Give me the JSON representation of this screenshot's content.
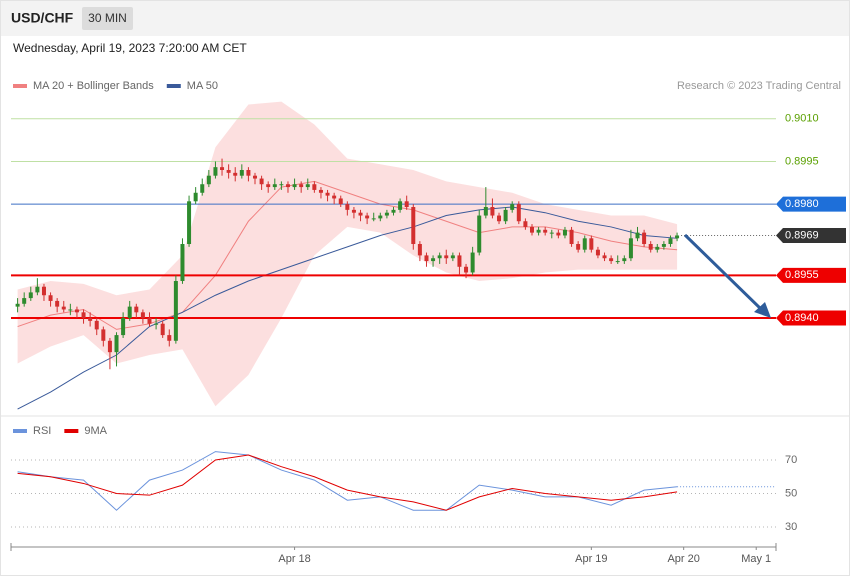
{
  "header": {
    "symbol": "USD/CHF",
    "interval": "30 MIN",
    "timestamp": "Wednesday, April 19, 2023 7:20:00 AM CET"
  },
  "chart_data": [
    {
      "type": "candlestick",
      "credit": "Research © 2023 Trading Central",
      "xlim": [
        -1,
        115
      ],
      "ylim": [
        0.8908,
        0.902
      ],
      "up_color": "#2e8b2e",
      "down_color": "#d32f2f",
      "open": [
        0.8944,
        0.8945,
        0.8947,
        0.8949,
        0.8951,
        0.8948,
        0.8946,
        0.8944,
        0.8943,
        0.8943,
        0.8942,
        0.894,
        0.8939,
        0.8936,
        0.8932,
        0.8928,
        0.8934,
        0.894,
        0.8944,
        0.8942,
        0.894,
        0.8938,
        0.8938,
        0.8934,
        0.8932,
        0.8953,
        0.8966,
        0.8981,
        0.8984,
        0.8987,
        0.899,
        0.8993,
        0.8992,
        0.8991,
        0.899,
        0.8992,
        0.899,
        0.8989,
        0.8987,
        0.8986,
        0.8987,
        0.8987,
        0.8986,
        0.8987,
        0.8986,
        0.8987,
        0.8985,
        0.8984,
        0.8983,
        0.8982,
        0.898,
        0.8978,
        0.8977,
        0.8976,
        0.8975,
        0.8975,
        0.8976,
        0.8977,
        0.8978,
        0.8981,
        0.8979,
        0.8966,
        0.8962,
        0.896,
        0.8961,
        0.8962,
        0.8961,
        0.8962,
        0.8958,
        0.8956,
        0.8963,
        0.8976,
        0.8979,
        0.8976,
        0.8974,
        0.8978,
        0.898,
        0.8974,
        0.8972,
        0.897,
        0.8971,
        0.897,
        0.897,
        0.8969,
        0.8971,
        0.8966,
        0.8964,
        0.8968,
        0.8964,
        0.8962,
        0.8961,
        0.896,
        0.896,
        0.8961,
        0.8968,
        0.897,
        0.8966,
        0.8964,
        0.8965,
        0.8966,
        0.8968
      ],
      "high": [
        0.8947,
        0.8949,
        0.8951,
        0.8954,
        0.8952,
        0.8949,
        0.8947,
        0.8946,
        0.8945,
        0.8944,
        0.8943,
        0.8942,
        0.894,
        0.8937,
        0.8933,
        0.8935,
        0.8942,
        0.8946,
        0.8945,
        0.8943,
        0.8942,
        0.894,
        0.8939,
        0.8936,
        0.8955,
        0.8968,
        0.8983,
        0.8986,
        0.8989,
        0.8992,
        0.8995,
        0.8996,
        0.8994,
        0.8993,
        0.8994,
        0.8993,
        0.8991,
        0.899,
        0.8988,
        0.8989,
        0.8988,
        0.8988,
        0.8989,
        0.8988,
        0.8989,
        0.8988,
        0.8986,
        0.8985,
        0.8984,
        0.8983,
        0.8981,
        0.8979,
        0.8978,
        0.8977,
        0.8977,
        0.8977,
        0.8978,
        0.8979,
        0.8982,
        0.8983,
        0.898,
        0.8967,
        0.8963,
        0.8962,
        0.8963,
        0.8964,
        0.8963,
        0.8963,
        0.8959,
        0.8965,
        0.8978,
        0.8986,
        0.8982,
        0.8977,
        0.8979,
        0.8981,
        0.8981,
        0.8975,
        0.8973,
        0.8972,
        0.8972,
        0.8971,
        0.8971,
        0.8972,
        0.8972,
        0.8967,
        0.8969,
        0.8969,
        0.8965,
        0.8963,
        0.8962,
        0.8962,
        0.8962,
        0.8971,
        0.8972,
        0.8971,
        0.8967,
        0.8966,
        0.8967,
        0.8969,
        0.897
      ],
      "low": [
        0.8942,
        0.8944,
        0.8946,
        0.8948,
        0.8946,
        0.8944,
        0.8942,
        0.8942,
        0.8941,
        0.894,
        0.8938,
        0.8937,
        0.8934,
        0.893,
        0.8922,
        0.8923,
        0.8933,
        0.8939,
        0.894,
        0.8938,
        0.8937,
        0.8936,
        0.8933,
        0.893,
        0.8931,
        0.8952,
        0.8965,
        0.898,
        0.8983,
        0.8986,
        0.8989,
        0.899,
        0.8989,
        0.8988,
        0.8989,
        0.8988,
        0.8987,
        0.8985,
        0.8984,
        0.8985,
        0.8985,
        0.8984,
        0.8985,
        0.8984,
        0.8985,
        0.8984,
        0.8982,
        0.8981,
        0.898,
        0.8979,
        0.8976,
        0.8975,
        0.8974,
        0.8973,
        0.8974,
        0.8974,
        0.8975,
        0.8976,
        0.8977,
        0.8978,
        0.8964,
        0.896,
        0.8958,
        0.8958,
        0.8959,
        0.8959,
        0.896,
        0.8955,
        0.8954,
        0.8955,
        0.8962,
        0.8975,
        0.8975,
        0.8973,
        0.8973,
        0.8977,
        0.8973,
        0.8971,
        0.8969,
        0.8969,
        0.8969,
        0.8968,
        0.8968,
        0.8968,
        0.8965,
        0.8963,
        0.8963,
        0.8963,
        0.8961,
        0.896,
        0.8959,
        0.8959,
        0.8959,
        0.896,
        0.8967,
        0.8965,
        0.8963,
        0.8963,
        0.8964,
        0.8965,
        0.8967
      ],
      "close": [
        0.8945,
        0.8947,
        0.8949,
        0.8951,
        0.8948,
        0.8946,
        0.8944,
        0.8943,
        0.8943,
        0.8942,
        0.894,
        0.8939,
        0.8936,
        0.8932,
        0.8928,
        0.8934,
        0.894,
        0.8944,
        0.8942,
        0.894,
        0.8938,
        0.8938,
        0.8934,
        0.8932,
        0.8953,
        0.8966,
        0.8981,
        0.8984,
        0.8987,
        0.899,
        0.8993,
        0.8992,
        0.8991,
        0.899,
        0.8992,
        0.899,
        0.8989,
        0.8987,
        0.8986,
        0.8987,
        0.8987,
        0.8986,
        0.8987,
        0.8986,
        0.8987,
        0.8985,
        0.8984,
        0.8983,
        0.8982,
        0.898,
        0.8978,
        0.8977,
        0.8976,
        0.8975,
        0.8975,
        0.8976,
        0.8977,
        0.8978,
        0.8981,
        0.8979,
        0.8966,
        0.8962,
        0.896,
        0.8961,
        0.8962,
        0.8961,
        0.8962,
        0.8958,
        0.8956,
        0.8963,
        0.8976,
        0.8979,
        0.8976,
        0.8974,
        0.8978,
        0.898,
        0.8974,
        0.8972,
        0.897,
        0.8971,
        0.897,
        0.897,
        0.8969,
        0.8971,
        0.8966,
        0.8964,
        0.8968,
        0.8964,
        0.8962,
        0.8961,
        0.896,
        0.896,
        0.8961,
        0.8968,
        0.897,
        0.8966,
        0.8964,
        0.8965,
        0.8966,
        0.8968,
        0.8969
      ],
      "series": [
        {
          "name": "MA 20 + Bollinger Bands",
          "color": "#f08080",
          "band_color": "#fcd9d9",
          "x": [
            0,
            5,
            10,
            15,
            20,
            25,
            30,
            35,
            40,
            45,
            50,
            55,
            60,
            65,
            70,
            75,
            80,
            85,
            90,
            95,
            100
          ],
          "values": [
            0.8937,
            0.8941,
            0.8943,
            0.8936,
            0.8938,
            0.8942,
            0.8955,
            0.8974,
            0.8986,
            0.8988,
            0.8984,
            0.898,
            0.8978,
            0.8974,
            0.897,
            0.8972,
            0.8972,
            0.897,
            0.8967,
            0.8965,
            0.8964
          ],
          "upper": [
            0.895,
            0.8953,
            0.8952,
            0.8948,
            0.895,
            0.8962,
            0.9,
            0.9015,
            0.9016,
            0.9008,
            0.8996,
            0.8994,
            0.8992,
            0.8988,
            0.8986,
            0.8984,
            0.898,
            0.8978,
            0.8976,
            0.8976,
            0.8973
          ],
          "lower": [
            0.8924,
            0.893,
            0.8934,
            0.8924,
            0.8927,
            0.8929,
            0.8909,
            0.892,
            0.894,
            0.8962,
            0.8972,
            0.897,
            0.8962,
            0.8956,
            0.8953,
            0.8954,
            0.8956,
            0.8957,
            0.8957,
            0.8957,
            0.8957
          ]
        },
        {
          "name": "MA 50",
          "color": "#3a5a9a",
          "x": [
            0,
            5,
            10,
            15,
            20,
            25,
            30,
            35,
            40,
            45,
            50,
            55,
            60,
            65,
            70,
            75,
            80,
            85,
            90,
            95,
            100
          ],
          "values": [
            0.8908,
            0.8914,
            0.8921,
            0.8927,
            0.8937,
            0.8942,
            0.8948,
            0.8953,
            0.8957,
            0.8961,
            0.8965,
            0.8969,
            0.8972,
            0.8976,
            0.8978,
            0.8979,
            0.8977,
            0.8974,
            0.8972,
            0.8969,
            0.8968
          ]
        }
      ],
      "levels": [
        {
          "value": 0.901,
          "label": "0.9010",
          "color": "#5aa000",
          "line_color": "#bfe0a4",
          "line_width": 1,
          "tag": false,
          "dotted": false
        },
        {
          "value": 0.8995,
          "label": "0.8995",
          "color": "#5aa000",
          "line_color": "#bfe0a4",
          "line_width": 1,
          "tag": false,
          "dotted": false
        },
        {
          "value": 0.898,
          "label": "0.8980",
          "color": "#1e6fd9",
          "line_color": "#3c6fc4",
          "line_width": 1,
          "tag": true,
          "dotted": false
        },
        {
          "value": 0.8969,
          "label": "0.8969",
          "color": "#333333",
          "line_color": "#666666",
          "line_width": 1,
          "tag": true,
          "dotted": true
        },
        {
          "value": 0.8955,
          "label": "0.8955",
          "color": "#ee0000",
          "line_color": "#ee0000",
          "line_width": 2,
          "tag": true,
          "dotted": false
        },
        {
          "value": 0.894,
          "label": "0.8940",
          "color": "#ee0000",
          "line_color": "#ee0000",
          "line_width": 2,
          "tag": true,
          "dotted": false
        }
      ]
    },
    {
      "type": "line",
      "xlim": [
        -1,
        115
      ],
      "ylim": [
        20,
        80
      ],
      "yticks": [
        30,
        50,
        70
      ],
      "grid": true,
      "xticks": [
        {
          "value": 42,
          "label": "Apr 18"
        },
        {
          "value": 87,
          "label": "Apr 19"
        },
        {
          "value": 101,
          "label": "Apr 20"
        },
        {
          "value": 112,
          "label": "May 1"
        }
      ],
      "series": [
        {
          "name": "RSI",
          "color": "#6b93dc",
          "x": [
            0,
            5,
            10,
            15,
            20,
            25,
            30,
            35,
            40,
            45,
            50,
            55,
            60,
            65,
            70,
            75,
            80,
            85,
            90,
            95,
            100
          ],
          "values": [
            63,
            60,
            58,
            40,
            58,
            64,
            75,
            73,
            64,
            58,
            46,
            48,
            40,
            40,
            55,
            52,
            48,
            48,
            43,
            52,
            54
          ]
        },
        {
          "name": "9MA",
          "color": "#e00000",
          "x": [
            0,
            5,
            10,
            15,
            20,
            25,
            30,
            35,
            40,
            45,
            50,
            55,
            60,
            65,
            70,
            75,
            80,
            85,
            90,
            95,
            100
          ],
          "values": [
            62,
            60,
            56,
            50,
            49,
            55,
            70,
            73,
            66,
            60,
            52,
            48,
            45,
            40,
            48,
            53,
            50,
            48,
            46,
            48,
            51
          ]
        }
      ]
    }
  ]
}
